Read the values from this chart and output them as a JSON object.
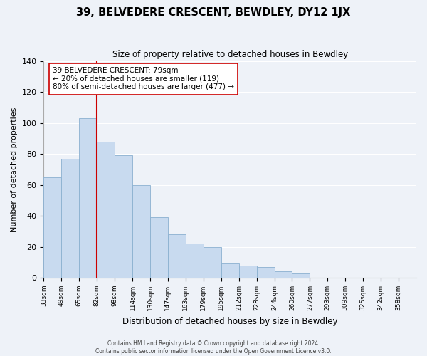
{
  "title": "39, BELVEDERE CRESCENT, BEWDLEY, DY12 1JX",
  "subtitle": "Size of property relative to detached houses in Bewdley",
  "xlabel": "Distribution of detached houses by size in Bewdley",
  "ylabel": "Number of detached properties",
  "bar_labels": [
    "33sqm",
    "49sqm",
    "65sqm",
    "82sqm",
    "98sqm",
    "114sqm",
    "130sqm",
    "147sqm",
    "163sqm",
    "179sqm",
    "195sqm",
    "212sqm",
    "228sqm",
    "244sqm",
    "260sqm",
    "277sqm",
    "293sqm",
    "309sqm",
    "325sqm",
    "342sqm",
    "358sqm"
  ],
  "bar_values": [
    65,
    77,
    103,
    88,
    79,
    60,
    39,
    28,
    22,
    20,
    9,
    8,
    7,
    4,
    3,
    0,
    0,
    0,
    0,
    0,
    0
  ],
  "bar_color": "#c8daef",
  "bar_edge_color": "#8ab0d0",
  "vline_idx": 3,
  "vline_color": "#cc0000",
  "ylim": [
    0,
    140
  ],
  "yticks": [
    0,
    20,
    40,
    60,
    80,
    100,
    120,
    140
  ],
  "annotation_text": "39 BELVEDERE CRESCENT: 79sqm\n← 20% of detached houses are smaller (119)\n80% of semi-detached houses are larger (477) →",
  "annotation_box_color": "#ffffff",
  "annotation_box_edge": "#cc0000",
  "footer_line1": "Contains HM Land Registry data © Crown copyright and database right 2024.",
  "footer_line2": "Contains public sector information licensed under the Open Government Licence v3.0.",
  "background_color": "#eef2f8",
  "plot_bg_color": "#eef2f8",
  "grid_color": "#ffffff",
  "spine_color": "#aaaaaa"
}
